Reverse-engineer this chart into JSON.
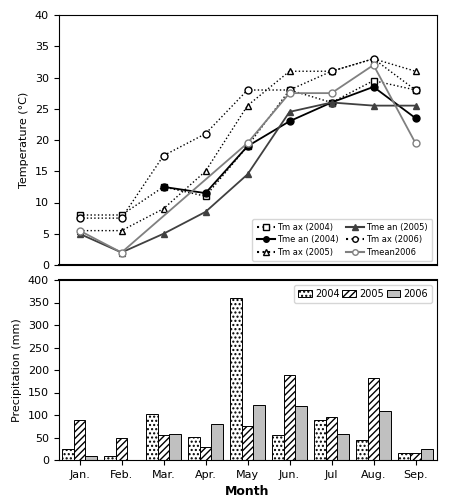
{
  "months": [
    "Jan.",
    "Feb.",
    "Mar.",
    "Apr.",
    "May",
    "Jun.",
    "Jul",
    "Aug.",
    "Sep."
  ],
  "tmax_2004": [
    8.0,
    8.0,
    12.5,
    11.0,
    19.0,
    28.0,
    26.0,
    29.5,
    28.0
  ],
  "tmax_2005": [
    5.5,
    5.5,
    9.0,
    15.0,
    25.5,
    31.0,
    31.0,
    33.0,
    31.0
  ],
  "tmax_2006": [
    7.5,
    7.5,
    17.5,
    21.0,
    28.0,
    28.0,
    31.0,
    33.0,
    28.0
  ],
  "tmean_2004_x": [
    2,
    3,
    4,
    5,
    6,
    7,
    8
  ],
  "tmean_2004_y": [
    12.5,
    11.5,
    19.0,
    23.0,
    26.0,
    28.5,
    23.5
  ],
  "tmean_2005_x": [
    0,
    1,
    2,
    3,
    4,
    5,
    6,
    7,
    8
  ],
  "tmean_2005_y": [
    5.0,
    2.0,
    5.0,
    8.5,
    14.5,
    24.5,
    26.0,
    25.5,
    25.5
  ],
  "tmean_2006_x": [
    0,
    1,
    4,
    5,
    6,
    7,
    8
  ],
  "tmean_2006_y": [
    5.5,
    2.0,
    19.5,
    27.5,
    27.5,
    32.0,
    19.5
  ],
  "precip_2004": [
    25,
    8,
    103,
    52,
    360,
    55,
    90,
    45,
    15
  ],
  "precip_2005": [
    90,
    50,
    55,
    30,
    75,
    190,
    95,
    183,
    15
  ],
  "precip_2006": [
    8,
    0,
    57,
    80,
    122,
    120,
    57,
    110,
    25
  ],
  "temp_ylim": [
    0,
    40
  ],
  "precip_ylim": [
    0,
    400
  ],
  "precip_yticks": [
    0,
    50,
    100,
    150,
    200,
    250,
    300,
    350,
    400
  ]
}
